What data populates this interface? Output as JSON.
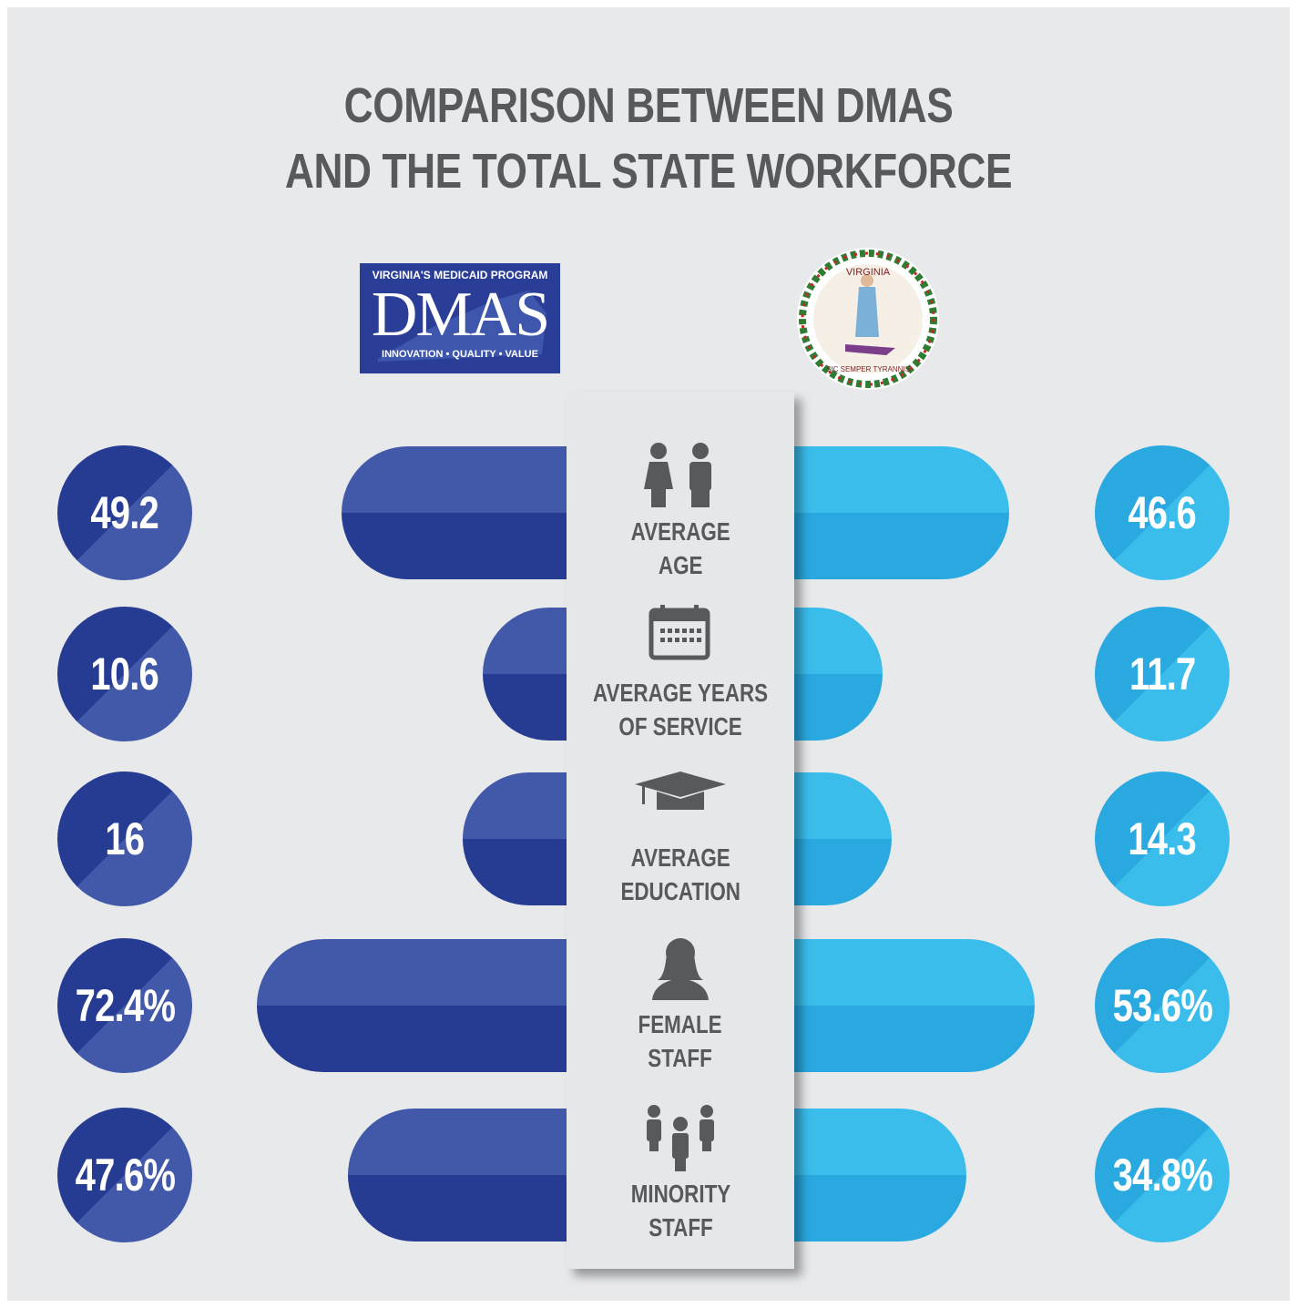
{
  "chart_data": {
    "type": "butterfly-bar",
    "title": "COMPARISON BETWEEN DMAS\nAND THE TOTAL STATE WORKFORCE",
    "logos": {
      "dmas": {
        "top": "VIRGINIA'S MEDICAID PROGRAM",
        "name": "DMAS",
        "bottom": "INNOVATION • QUALITY • VALUE"
      },
      "seal": {
        "top": "VIRGINIA",
        "bottom": "SIC SEMPER TYRANNIS"
      }
    },
    "categories": [
      "AVERAGE\nAGE",
      "AVERAGE  YEARS\nOF SERVICE",
      "AVERAGE\nEDUCATION",
      "FEMALE\nSTAFF",
      "MINORITY\nSTAFF"
    ],
    "series": [
      {
        "color": "#263b92",
        "light": "#4159a8",
        "values": [
          49.2,
          10.6,
          16,
          72.4,
          47.6
        ],
        "value_labels": [
          "49.2",
          "10.6",
          "16",
          "72.4%",
          "47.6%"
        ]
      },
      {
        "color": "#29a9e0",
        "light": "#3bbdec",
        "values": [
          46.6,
          11.7,
          14.3,
          53.6,
          34.8
        ],
        "value_labels": [
          "46.6",
          "11.7",
          "14.3",
          "53.6%",
          "34.8%"
        ]
      }
    ]
  }
}
